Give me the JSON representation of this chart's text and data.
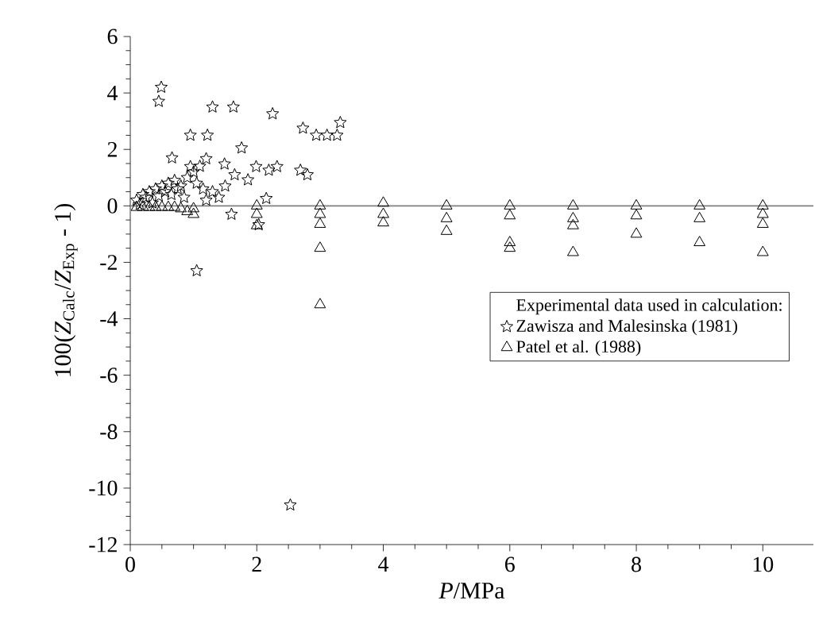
{
  "chart_data": {
    "type": "scatter",
    "xlabel": "*P*/MPa",
    "ylabel": "100(*Z*$_{Calc}$/*Z*$_{Exp}$ - 1)",
    "legend_title": "Experimental data used in calculation:",
    "xlim": [
      0,
      10.8
    ],
    "ylim": [
      -12,
      6
    ],
    "xticks": [
      0,
      2,
      4,
      6,
      8,
      10
    ],
    "yticks": [
      -12,
      -10,
      -8,
      -6,
      -4,
      -2,
      0,
      2,
      4,
      6
    ],
    "grid": false,
    "legend": "right",
    "ref_lines": [
      {
        "axis": "y",
        "value": 0,
        "color": "#808080"
      }
    ],
    "series": [
      {
        "name": "Zawisza and Malesinska (1981)",
        "color": "#000000",
        "marker": "star",
        "x": [
          0.49,
          0.45,
          0.95,
          1.22,
          1.3,
          1.63,
          2.25,
          0.66,
          1.76,
          2.73,
          2.94,
          3.11,
          3.27,
          3.32,
          2.69,
          2.8,
          2.19,
          2.32,
          1.99,
          1.86,
          1.65,
          1.49,
          1.2,
          0.95,
          1.6,
          2.03,
          2.15,
          2.53,
          1.05,
          0.1,
          0.2,
          0.3,
          0.4,
          0.5,
          0.6,
          0.7,
          0.8,
          0.9,
          1.0,
          0.25,
          0.45,
          0.55,
          0.65,
          0.75,
          0.85,
          1.05,
          1.15,
          1.3,
          1.4,
          1.5,
          1.1,
          1.2,
          0.35,
          0.15
        ],
        "values": [
          4.2,
          3.7,
          2.5,
          2.5,
          3.5,
          3.5,
          3.26,
          1.7,
          2.05,
          2.75,
          2.5,
          2.5,
          2.5,
          2.95,
          1.26,
          1.1,
          1.26,
          1.39,
          1.39,
          0.92,
          1.1,
          1.48,
          1.67,
          1.39,
          -0.3,
          -0.67,
          0.26,
          -10.6,
          -2.3,
          0.2,
          0.4,
          0.5,
          0.6,
          0.7,
          0.8,
          0.9,
          0.7,
          1.0,
          1.2,
          0.3,
          0.35,
          0.5,
          0.4,
          0.6,
          0.3,
          0.8,
          0.6,
          0.5,
          0.3,
          0.7,
          1.4,
          0.2,
          0.1,
          0.05
        ]
      },
      {
        "name": "Patel et al. (1988)",
        "color": "#000000",
        "marker": "triangle",
        "x": [
          0.1,
          0.2,
          0.3,
          0.4,
          0.5,
          0.6,
          0.7,
          0.8,
          0.9,
          1.0,
          1.0,
          2,
          2,
          2,
          3,
          3,
          3,
          3,
          3,
          4,
          4,
          4,
          5,
          5,
          5,
          6,
          6,
          6,
          6,
          7,
          7,
          7,
          7,
          8,
          8,
          8,
          9,
          9,
          9,
          10,
          10,
          10,
          10
        ],
        "values": [
          -0.05,
          -0.05,
          -0.05,
          -0.05,
          -0.05,
          -0.05,
          -0.05,
          -0.1,
          -0.2,
          -0.3,
          -0.1,
          0,
          -0.3,
          -0.7,
          0,
          -0.3,
          -0.65,
          -1.5,
          -3.5,
          0.1,
          -0.3,
          -0.6,
          0,
          -0.45,
          -0.9,
          0,
          -0.35,
          -1.3,
          -1.5,
          0,
          -0.45,
          -0.7,
          -1.65,
          0,
          -0.35,
          -1.0,
          0,
          -0.45,
          -1.3,
          0,
          -0.3,
          -0.65,
          -1.65
        ]
      }
    ]
  }
}
